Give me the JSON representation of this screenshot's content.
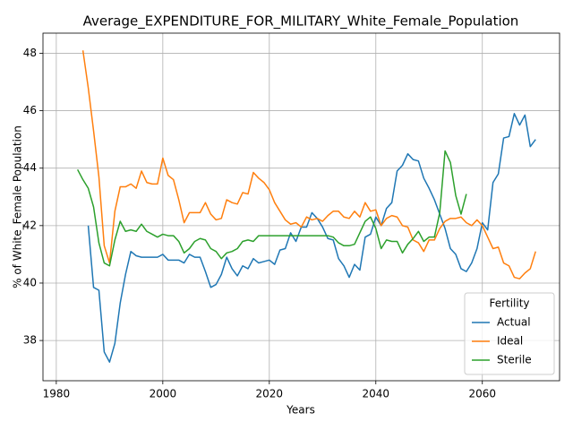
{
  "chart_data": {
    "type": "line",
    "title": "Average_EXPENDITURE_FOR_MILITARY_White_Female_Population",
    "x_label": "Years",
    "y_label": "% of White_Female Population",
    "legend_title": "Fertility",
    "legend_loc": "lower right",
    "grid": true,
    "xlim": [
      1977.5,
      2074.5
    ],
    "ylim": [
      36.6,
      48.7
    ],
    "xticks": [
      1980,
      2000,
      2020,
      2040,
      2060
    ],
    "yticks": [
      38,
      40,
      42,
      44,
      46,
      48
    ],
    "x": [
      1984,
      1985,
      1986,
      1987,
      1988,
      1989,
      1990,
      1991,
      1992,
      1993,
      1994,
      1995,
      1996,
      1997,
      1998,
      1999,
      2000,
      2001,
      2002,
      2003,
      2004,
      2005,
      2006,
      2007,
      2008,
      2009,
      2010,
      2011,
      2012,
      2013,
      2014,
      2015,
      2016,
      2017,
      2018,
      2019,
      2020,
      2021,
      2022,
      2023,
      2024,
      2025,
      2026,
      2027,
      2028,
      2029,
      2030,
      2031,
      2032,
      2033,
      2034,
      2035,
      2036,
      2037,
      2038,
      2039,
      2040,
      2041,
      2042,
      2043,
      2044,
      2045,
      2046,
      2047,
      2048,
      2049,
      2050,
      2051,
      2052,
      2053,
      2054,
      2055,
      2056,
      2057,
      2058,
      2059,
      2060,
      2061,
      2062,
      2063,
      2064,
      2065,
      2066,
      2067,
      2068,
      2069,
      2070
    ],
    "series": [
      {
        "name": "Actual",
        "color": "#1f77b4",
        "values": [
          null,
          null,
          42.0,
          39.85,
          39.75,
          37.6,
          37.25,
          37.9,
          39.3,
          40.3,
          41.1,
          40.95,
          40.9,
          40.9,
          40.9,
          40.9,
          41.0,
          40.8,
          40.8,
          40.8,
          40.7,
          41.0,
          40.9,
          40.9,
          40.4,
          39.85,
          39.95,
          40.3,
          40.9,
          40.5,
          40.25,
          40.6,
          40.5,
          40.85,
          40.7,
          40.75,
          40.8,
          40.65,
          41.15,
          41.2,
          41.75,
          41.45,
          41.95,
          41.95,
          42.45,
          42.25,
          41.95,
          41.55,
          41.5,
          40.85,
          40.6,
          40.2,
          40.65,
          40.45,
          41.6,
          41.7,
          42.3,
          42.0,
          42.6,
          42.8,
          43.9,
          44.1,
          44.5,
          44.3,
          44.25,
          43.65,
          43.3,
          42.9,
          42.4,
          41.9,
          41.2,
          41.0,
          40.5,
          40.4,
          40.7,
          41.2,
          42.1,
          41.85,
          43.5,
          43.8,
          45.05,
          45.1,
          45.9,
          45.5,
          45.85,
          44.75,
          45.0
        ]
      },
      {
        "name": "Ideal",
        "color": "#ff7f0e",
        "values": [
          null,
          48.1,
          46.8,
          45.3,
          43.7,
          41.3,
          40.7,
          42.5,
          43.35,
          43.35,
          43.45,
          43.3,
          43.9,
          43.5,
          43.45,
          43.45,
          44.35,
          43.75,
          43.6,
          42.9,
          42.1,
          42.45,
          42.45,
          42.45,
          42.8,
          42.4,
          42.2,
          42.25,
          42.9,
          42.8,
          42.75,
          43.15,
          43.1,
          43.85,
          43.65,
          43.5,
          43.25,
          42.8,
          42.5,
          42.2,
          42.05,
          42.1,
          41.95,
          42.3,
          42.2,
          42.25,
          42.15,
          42.35,
          42.5,
          42.5,
          42.3,
          42.25,
          42.5,
          42.3,
          42.8,
          42.5,
          42.55,
          42.0,
          42.25,
          42.35,
          42.3,
          42.0,
          41.95,
          41.5,
          41.4,
          41.1,
          41.5,
          41.5,
          41.9,
          42.15,
          42.25,
          42.25,
          42.3,
          42.1,
          42.0,
          42.2,
          42.0,
          41.6,
          41.2,
          41.25,
          40.7,
          40.6,
          40.2,
          40.15,
          40.35,
          40.5,
          41.1
        ]
      },
      {
        "name": "Sterile",
        "color": "#2ca02c",
        "values": [
          43.95,
          43.6,
          43.3,
          42.65,
          41.4,
          40.7,
          40.6,
          41.5,
          42.15,
          41.8,
          41.85,
          41.8,
          42.05,
          41.8,
          41.7,
          41.6,
          41.7,
          41.65,
          41.65,
          41.45,
          41.05,
          41.2,
          41.45,
          41.55,
          41.5,
          41.2,
          41.1,
          40.85,
          41.05,
          41.1,
          41.2,
          41.45,
          41.5,
          41.45,
          41.65,
          41.65,
          41.65,
          41.65,
          41.65,
          41.65,
          41.65,
          41.65,
          41.65,
          41.65,
          41.65,
          41.65,
          41.65,
          41.65,
          41.6,
          41.4,
          41.3,
          41.3,
          41.35,
          41.75,
          42.15,
          42.3,
          41.9,
          41.2,
          41.5,
          41.45,
          41.45,
          41.05,
          41.35,
          41.55,
          41.8,
          41.45,
          41.6,
          41.6,
          42.45,
          44.6,
          44.2,
          43.05,
          42.4,
          43.1,
          null,
          null,
          null,
          null,
          null,
          null,
          null,
          null,
          null,
          null,
          null,
          null,
          null
        ]
      }
    ]
  }
}
